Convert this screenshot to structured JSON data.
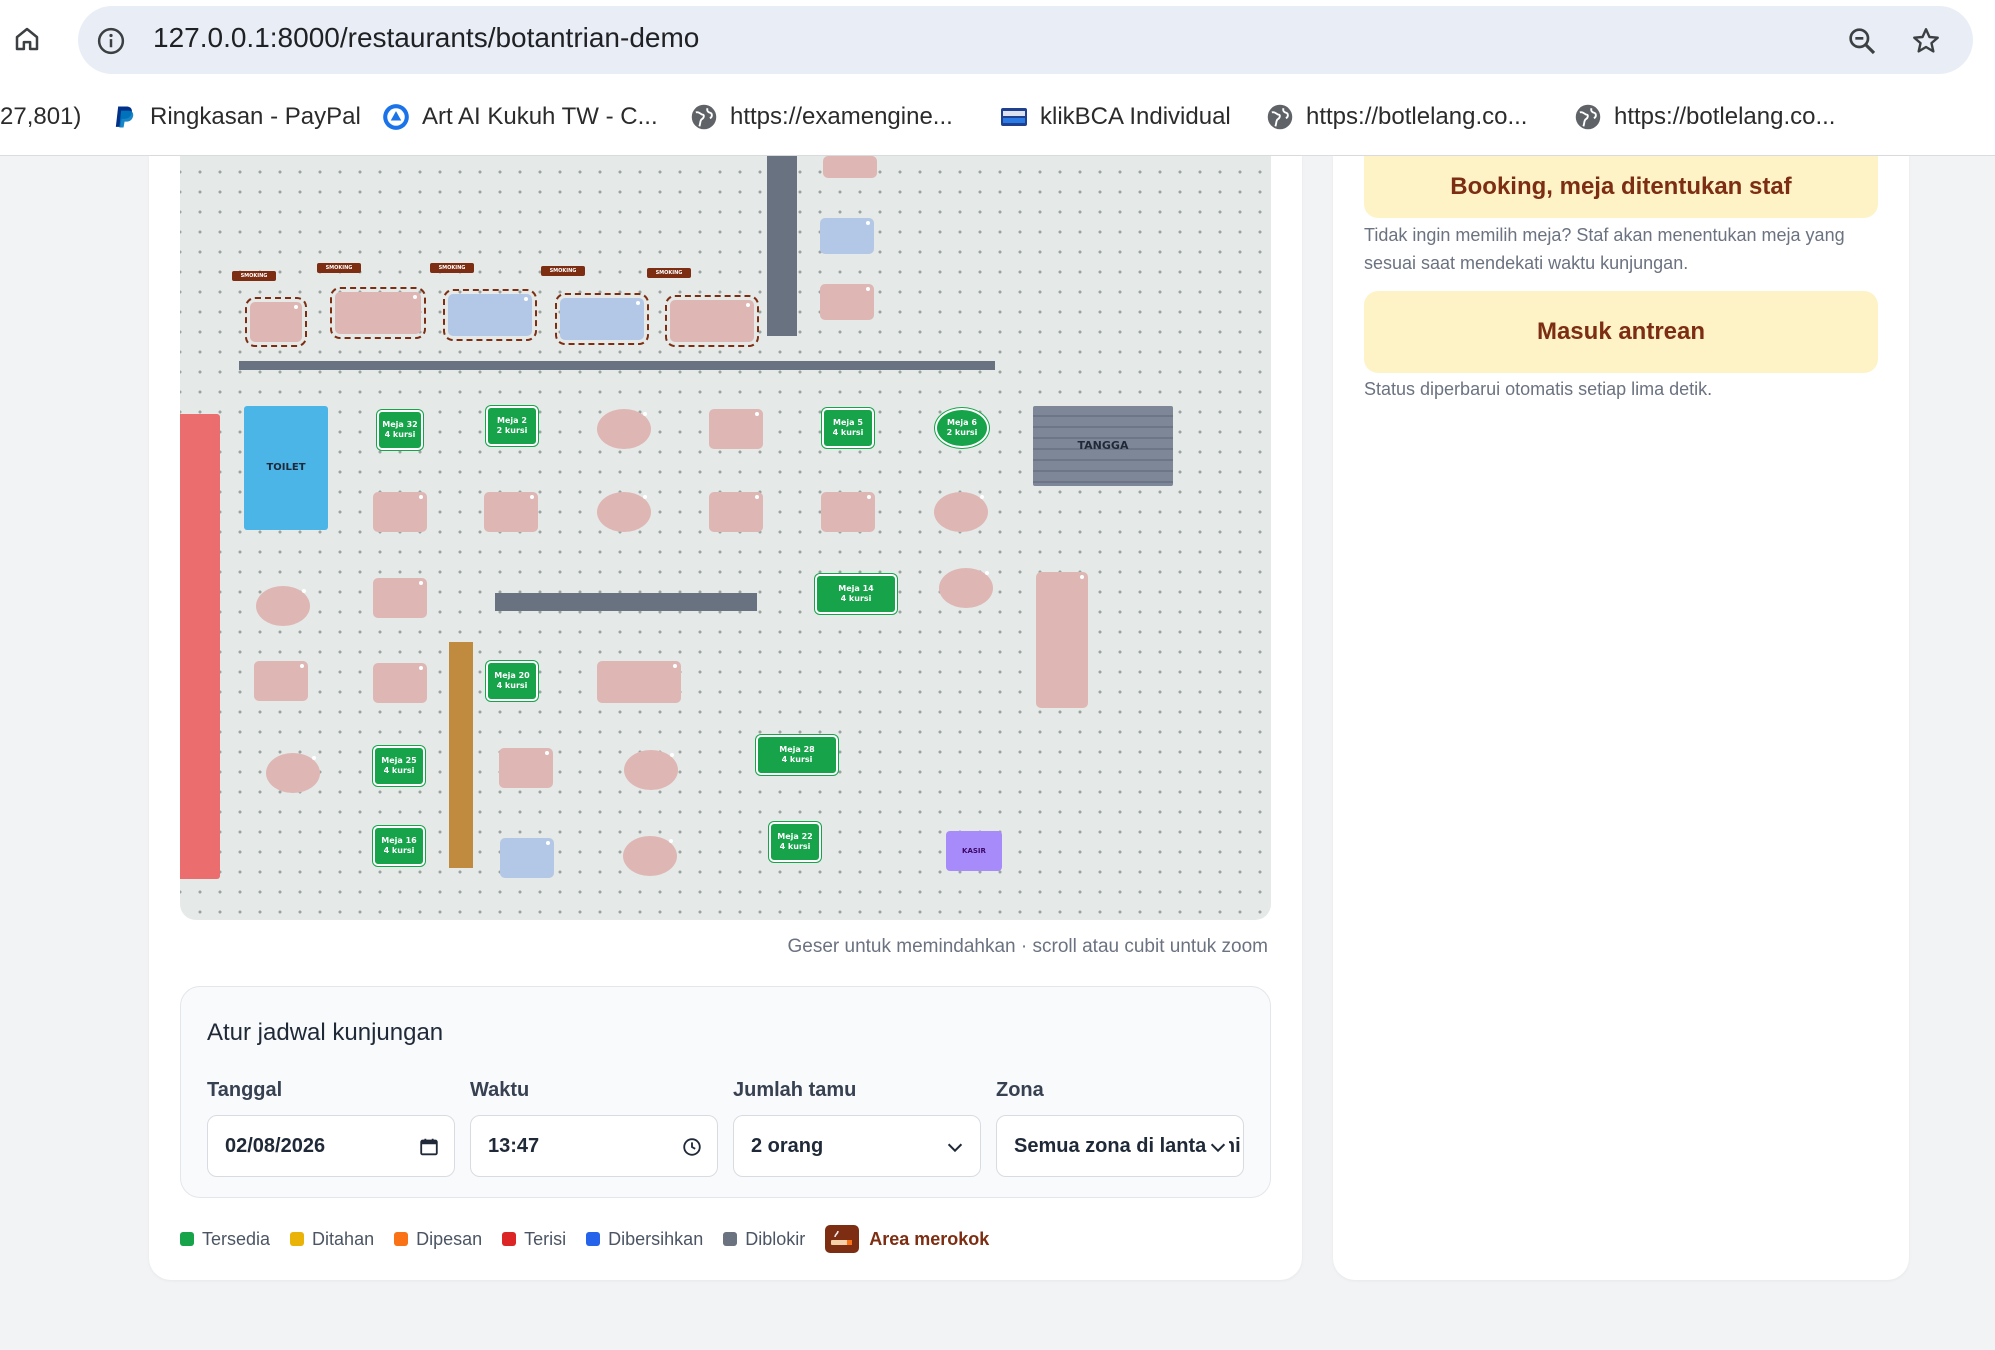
{
  "browser": {
    "url": "127.0.0.1:8000/restaurants/botantrian-demo",
    "bookmarks": [
      {
        "label": "27,801)",
        "icon": "none"
      },
      {
        "label": "Ringkasan - PayPal",
        "icon": "paypal-icon"
      },
      {
        "label": "Art AI Kukuh TW - C...",
        "icon": "art-ai-icon"
      },
      {
        "label": "https://examengine...",
        "icon": "globe-icon"
      },
      {
        "label": "klikBCA Individual",
        "icon": "klikbca-icon"
      },
      {
        "label": "https://botlelang.co...",
        "icon": "globe-icon"
      },
      {
        "label": "https://botlelang.co...",
        "icon": "globe-icon"
      }
    ]
  },
  "floor": {
    "smoking_tag": "SMOKING",
    "labels": {
      "toilet": "TOILET",
      "stairs": "TANGGA",
      "cashier": "KASIR"
    },
    "tables": [
      {
        "name": "Meja 32",
        "seats": "4 kursi",
        "status": "available"
      },
      {
        "name": "Meja 2",
        "seats": "2 kursi",
        "status": "available"
      },
      {
        "name": "Meja 5",
        "seats": "4 kursi",
        "status": "available"
      },
      {
        "name": "Meja 6",
        "seats": "2 kursi",
        "status": "available"
      },
      {
        "name": "Meja 14",
        "seats": "4 kursi",
        "status": "available"
      },
      {
        "name": "Meja 20",
        "seats": "4 kursi",
        "status": "available"
      },
      {
        "name": "Meja 25",
        "seats": "4 kursi",
        "status": "available"
      },
      {
        "name": "Meja 28",
        "seats": "4 kursi",
        "status": "available"
      },
      {
        "name": "Meja 16",
        "seats": "4 kursi",
        "status": "available"
      },
      {
        "name": "Meja 22",
        "seats": "4 kursi",
        "status": "available"
      }
    ],
    "hint": "Geser untuk memindahkan · scroll atau cubit untuk zoom"
  },
  "schedule": {
    "title": "Atur jadwal kunjungan",
    "date_label": "Tanggal",
    "date_value": "02/08/2026",
    "time_label": "Waktu",
    "time_value": "13:47",
    "guests_label": "Jumlah tamu",
    "guests_value": "2 orang",
    "zone_label": "Zona",
    "zone_value": "Semua zona di lantai ini"
  },
  "legend": [
    {
      "label": "Tersedia",
      "color": "#16a34a"
    },
    {
      "label": "Ditahan",
      "color": "#eab308"
    },
    {
      "label": "Dipesan",
      "color": "#f97316"
    },
    {
      "label": "Terisi",
      "color": "#dc2626"
    },
    {
      "label": "Dibersihkan",
      "color": "#2563eb"
    },
    {
      "label": "Diblokir",
      "color": "#6b7280"
    }
  ],
  "legend_smoking": "Area merokok",
  "side": {
    "booking_button": "Booking, meja ditentukan staf",
    "booking_note": "Tidak ingin memilih meja? Staf akan menentukan meja yang sesuai saat mendekati waktu kunjungan.",
    "queue_button": "Masuk antrean",
    "queue_note": "Status diperbarui otomatis setiap lima detik."
  }
}
